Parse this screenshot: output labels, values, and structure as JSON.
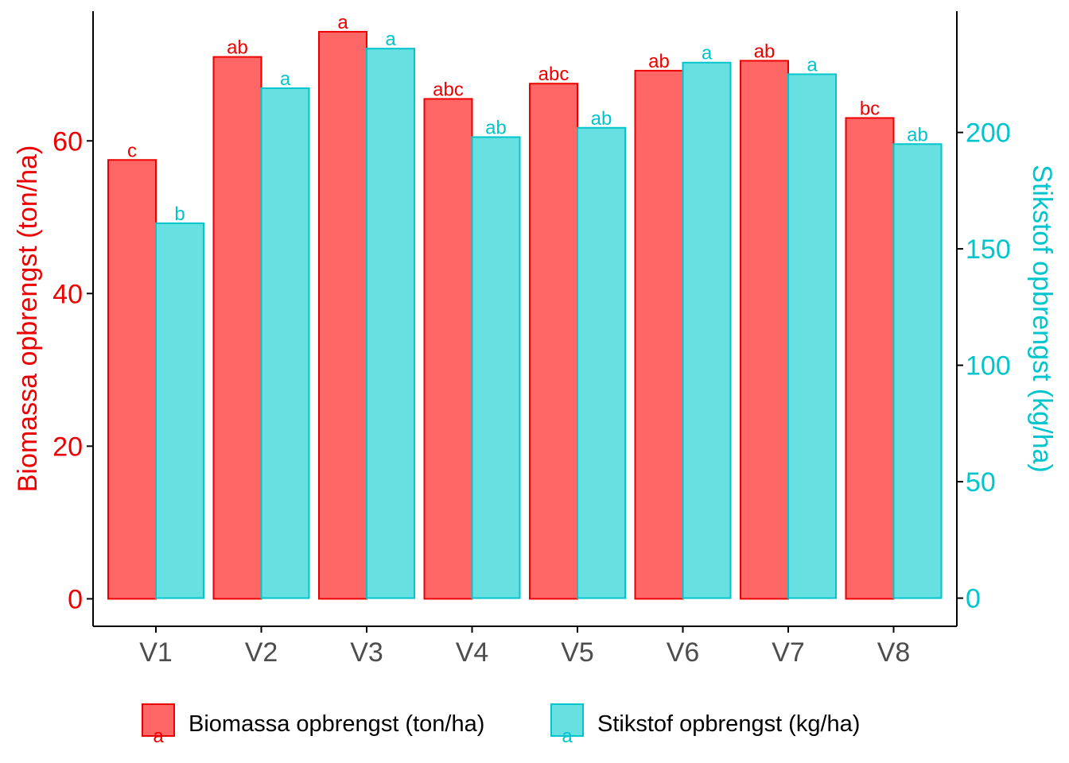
{
  "colors": {
    "biomass_fill": "#ff6666",
    "biomass_line": "#ee0000",
    "nitrogen_fill": "#66e0e0",
    "nitrogen_line": "#00c5cd",
    "axis": "#000000",
    "tick_x": "#4d4d4d"
  },
  "chart_data": {
    "type": "bar",
    "categories": [
      "V1",
      "V2",
      "V3",
      "V4",
      "V5",
      "V6",
      "V7",
      "V8"
    ],
    "y_left": {
      "label": "Biomassa opbrengst (ton/ha)",
      "range": [
        -3.6,
        77
      ],
      "ticks": [
        0,
        20,
        40,
        60
      ]
    },
    "y_right": {
      "label": "Stikstof opbrengst (kg/ha)",
      "range": [
        -12.1,
        252.1
      ],
      "ticks": [
        0,
        50,
        100,
        150,
        200
      ]
    },
    "series": [
      {
        "name": "Biomassa opbrengst (ton/ha)",
        "axis": "left",
        "values": [
          57.5,
          71.0,
          74.3,
          65.5,
          67.5,
          69.2,
          70.5,
          63.0
        ],
        "letters": [
          "c",
          "ab",
          "a",
          "abc",
          "abc",
          "ab",
          "ab",
          "bc"
        ]
      },
      {
        "name": "Stikstof opbrengst (kg/ha)",
        "axis": "right",
        "values": [
          161,
          219,
          236,
          198,
          202,
          230,
          225,
          195
        ],
        "letters": [
          "b",
          "a",
          "a",
          "ab",
          "ab",
          "a",
          "a",
          "ab"
        ]
      }
    ],
    "legend": {
      "position": "bottom",
      "items": [
        "Biomassa opbrengst (ton/ha)",
        "Stikstof opbrengst (kg/ha)"
      ],
      "key_letter": "a"
    }
  }
}
